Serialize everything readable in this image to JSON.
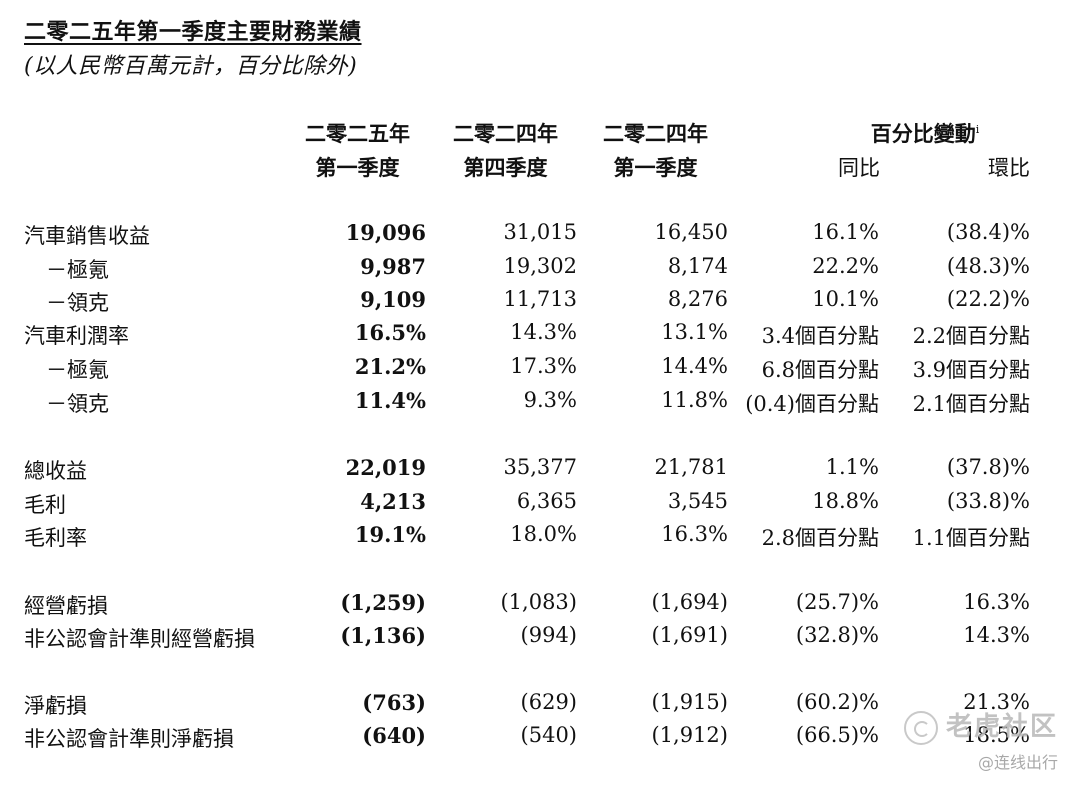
{
  "title": "二零二五年第一季度主要財務業績",
  "subtitle": "(以人民幣百萬元計，百分比除外)",
  "columns": {
    "q1_2025": [
      "二零二五年",
      "第一季度"
    ],
    "q4_2024": [
      "二零二四年",
      "第四季度"
    ],
    "q1_2024": [
      "二零二四年",
      "第一季度"
    ],
    "pct_change": "百分比變動",
    "pct_change_sup": "i",
    "yoy": "同比",
    "qoq": "環比"
  },
  "rows": [
    {
      "label": "汽車銷售收益",
      "indent": false,
      "values": [
        "19,096",
        "31,015",
        "16,450",
        "16.1%",
        "(38.4)%"
      ]
    },
    {
      "label": "－極氪",
      "indent": true,
      "values": [
        "9,987",
        "19,302",
        "8,174",
        "22.2%",
        "(48.3)%"
      ]
    },
    {
      "label": "－領克",
      "indent": true,
      "values": [
        "9,109",
        "11,713",
        "8,276",
        "10.1%",
        "(22.2)%"
      ]
    },
    {
      "label": "汽車利潤率",
      "indent": false,
      "values": [
        "16.5%",
        "14.3%",
        "13.1%",
        "3.4個百分點",
        "2.2個百分點"
      ]
    },
    {
      "label": "－極氪",
      "indent": true,
      "values": [
        "21.2%",
        "17.3%",
        "14.4%",
        "6.8個百分點",
        "3.9個百分點"
      ]
    },
    {
      "label": "－領克",
      "indent": true,
      "values": [
        "11.4%",
        "9.3%",
        "11.8%",
        "(0.4)個百分點",
        "2.1個百分點"
      ]
    },
    {
      "label": "總收益",
      "indent": false,
      "values": [
        "22,019",
        "35,377",
        "21,781",
        "1.1%",
        "(37.8)%"
      ]
    },
    {
      "label": "毛利",
      "indent": false,
      "values": [
        "4,213",
        "6,365",
        "3,545",
        "18.8%",
        "(33.8)%"
      ]
    },
    {
      "label": "毛利率",
      "indent": false,
      "values": [
        "19.1%",
        "18.0%",
        "16.3%",
        "2.8個百分點",
        "1.1個百分點"
      ]
    },
    {
      "label": "經營虧損",
      "indent": false,
      "values": [
        "(1,259)",
        "(1,083)",
        "(1,694)",
        "(25.7)%",
        "16.3%"
      ]
    },
    {
      "label": "非公認會計準則經營虧損",
      "indent": false,
      "values": [
        "(1,136)",
        "(994)",
        "(1,691)",
        "(32.8)%",
        "14.3%"
      ]
    },
    {
      "label": "淨虧損",
      "indent": false,
      "values": [
        "(763)",
        "(629)",
        "(1,915)",
        "(60.2)%",
        "21.3%"
      ]
    },
    {
      "label": "非公認會計準則淨虧損",
      "indent": false,
      "values": [
        "(640)",
        "(540)",
        "(1,912)",
        "(66.5)%",
        "18.5%"
      ]
    }
  ],
  "watermark": {
    "main": "老虎社区",
    "sub": "@连线出行"
  }
}
